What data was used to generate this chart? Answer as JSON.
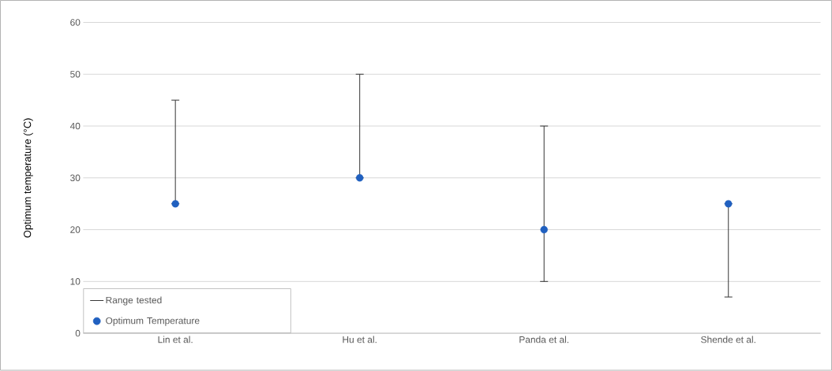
{
  "chart_data": {
    "type": "scatter",
    "ylabel": "Optimum temperature (°C)",
    "categories": [
      "Lin et al.",
      "Hu et al.",
      "Panda et al.",
      "Shende et al."
    ],
    "series": [
      {
        "name": "Optimum Temperature",
        "color": "#2060c0",
        "values": [
          25,
          30,
          20,
          25
        ],
        "errors": [
          [
            25,
            45
          ],
          [
            30,
            50
          ],
          [
            10,
            40
          ],
          [
            7,
            25
          ]
        ]
      }
    ],
    "annotations": [
      "Range tested"
    ],
    "ylim": [
      0,
      60
    ],
    "yticks": [
      0,
      10,
      20,
      30,
      40,
      50,
      60
    ],
    "grid": "y",
    "legend": "bottom left"
  }
}
